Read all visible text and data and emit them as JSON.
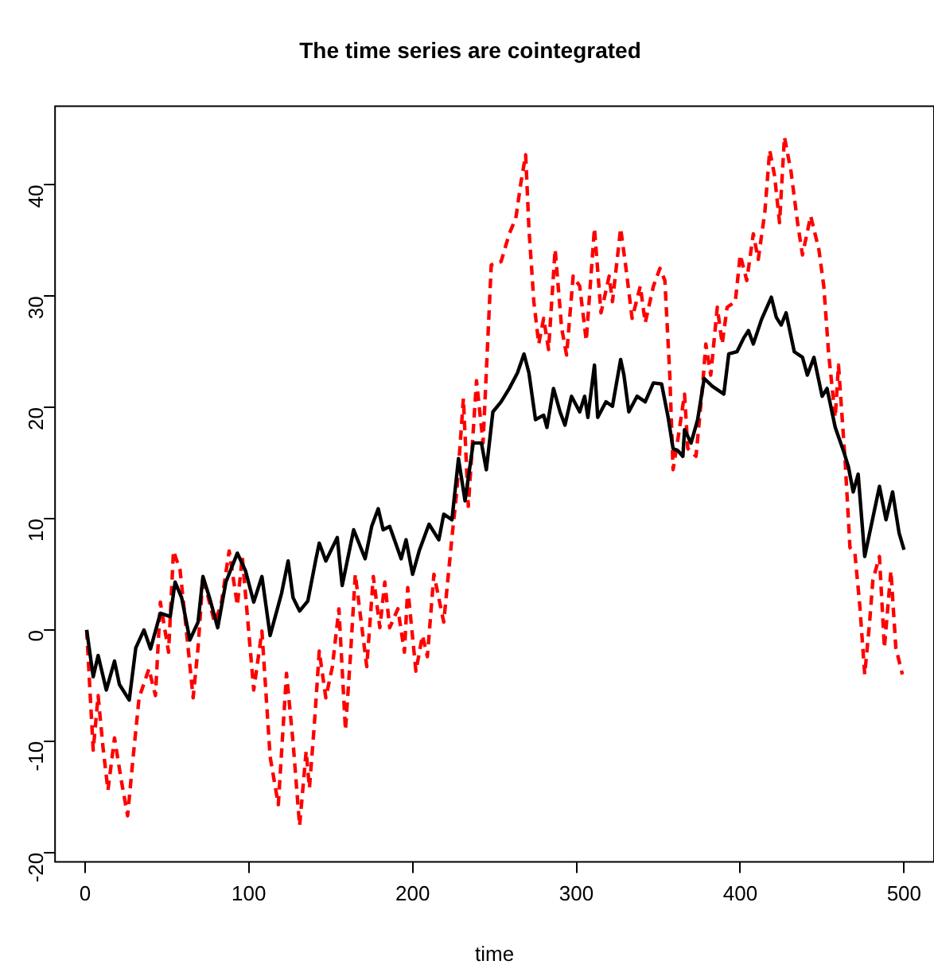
{
  "chart_data": {
    "type": "line",
    "title": "The time series are cointegrated",
    "xlabel": "time",
    "xlim": [
      -18.3,
      518.3
    ],
    "ylim": [
      -20.85,
      47.06
    ],
    "xticks": [
      0,
      100,
      200,
      300,
      400,
      500
    ],
    "yticks": [
      -20,
      -10,
      0,
      10,
      20,
      30,
      40
    ],
    "grid": false,
    "legend": false,
    "marker": "none",
    "series": [
      {
        "color": "#000000",
        "line_style": "solid",
        "x": [
          1,
          5,
          8,
          13,
          18,
          21,
          27,
          31,
          36,
          40,
          46,
          52,
          55,
          59,
          64,
          69,
          72,
          76,
          81,
          86,
          93,
          98,
          103,
          108,
          113,
          120,
          124,
          127,
          131,
          136,
          141,
          143,
          147,
          154,
          157,
          164,
          171,
          175,
          179,
          182,
          186,
          193,
          196,
          200,
          204,
          210,
          216,
          219,
          224,
          228,
          232,
          237,
          242,
          245,
          249,
          254,
          259,
          264,
          268,
          271,
          275,
          280,
          282,
          286,
          290,
          293,
          297,
          302,
          305,
          307,
          311,
          313,
          318,
          322,
          327,
          329,
          332,
          337,
          342,
          347,
          352,
          356,
          359,
          362,
          365,
          366,
          370,
          374,
          378,
          383,
          390,
          393,
          398,
          402,
          405,
          408,
          413,
          419,
          422,
          425,
          428,
          433,
          438,
          441,
          445,
          450,
          453,
          458,
          463,
          466,
          469,
          472,
          476,
          479,
          485,
          489,
          493,
          497,
          500
        ],
        "values": [
          0,
          -4.2,
          -2.3,
          -5.4,
          -2.8,
          -4.9,
          -6.3,
          -1.6,
          0,
          -1.7,
          1.5,
          1.2,
          4.3,
          2.9,
          -0.9,
          0.7,
          4.8,
          2.9,
          0.2,
          4.3,
          6.9,
          5.3,
          2.5,
          4.8,
          -0.5,
          3.3,
          6.2,
          2.9,
          1.7,
          2.6,
          6.4,
          7.8,
          6.2,
          8.3,
          4.0,
          9.0,
          6.4,
          9.3,
          10.9,
          9.0,
          9.3,
          6.4,
          8.1,
          5.0,
          7.1,
          9.5,
          8.1,
          10.4,
          9.9,
          15.4,
          11.6,
          16.8,
          16.8,
          14.4,
          19.6,
          20.5,
          21.7,
          23.1,
          24.8,
          23.1,
          18.9,
          19.3,
          18.2,
          21.7,
          19.6,
          18.4,
          21.0,
          19.6,
          21.0,
          19.1,
          23.8,
          19.1,
          20.5,
          20.1,
          24.3,
          22.9,
          19.6,
          21.0,
          20.5,
          22.2,
          22.1,
          19.1,
          16.3,
          16.1,
          15.6,
          18.0,
          16.8,
          18.9,
          22.6,
          21.9,
          21.2,
          24.8,
          25.0,
          26.2,
          26.9,
          25.7,
          27.9,
          29.9,
          28.1,
          27.4,
          28.5,
          25.0,
          24.5,
          22.9,
          24.5,
          21.0,
          21.7,
          18.2,
          16.1,
          14.7,
          12.4,
          14.0,
          6.6,
          8.7,
          12.9,
          9.9,
          12.4,
          8.7,
          7.2
        ]
      },
      {
        "color": "#ff0000",
        "line_style": "dashed",
        "x": [
          1,
          5,
          8,
          11,
          14,
          18,
          22,
          26,
          29,
          33,
          39,
          43,
          46,
          51,
          54,
          58,
          61,
          66,
          69,
          72,
          79,
          83,
          88,
          93,
          96,
          103,
          108,
          113,
          118,
          123,
          127,
          131,
          135,
          137,
          140,
          143,
          147,
          151,
          155,
          159,
          162,
          165,
          172,
          176,
          180,
          183,
          186,
          191,
          195,
          197,
          202,
          206,
          209,
          213,
          219,
          224,
          227,
          231,
          234,
          239,
          243,
          248,
          254,
          259,
          263,
          266,
          269,
          271,
          274,
          277,
          280,
          283,
          287,
          291,
          294,
          298,
          302,
          306,
          311,
          315,
          320,
          322,
          327,
          330,
          334,
          339,
          342,
          347,
          351,
          354,
          357,
          359,
          362,
          366,
          368,
          373,
          377,
          379,
          382,
          386,
          389,
          392,
          397,
          400,
          404,
          408,
          411,
          415,
          418,
          421,
          424,
          427,
          431,
          435,
          438,
          443,
          448,
          451,
          454,
          458,
          460,
          464,
          467,
          470,
          473,
          476,
          479,
          481,
          485,
          488,
          492,
          495,
          499
        ],
        "values": [
          0,
          -10.8,
          -5.9,
          -10.6,
          -14.4,
          -9.7,
          -13.4,
          -16.7,
          -12.0,
          -6.1,
          -3.5,
          -5.9,
          2.5,
          -2.0,
          7.1,
          5.4,
          1.2,
          -6.1,
          -1.6,
          4.8,
          0.7,
          2.2,
          7.1,
          2.2,
          6.6,
          -5.4,
          -0.1,
          -11.4,
          -15.7,
          -3.9,
          -10.1,
          -17.6,
          -10.9,
          -14.2,
          -8.5,
          -1.9,
          -6.1,
          -3.3,
          1.9,
          -9.0,
          -2.4,
          5.0,
          -3.3,
          4.8,
          0.2,
          4.3,
          0.2,
          1.9,
          -2.0,
          3.8,
          -3.7,
          -0.5,
          -2.4,
          5.0,
          0.7,
          8.3,
          12.5,
          20.8,
          11.1,
          22.4,
          16.8,
          32.8,
          33.1,
          35.6,
          37.0,
          40.1,
          42.7,
          36.1,
          29.5,
          25.7,
          28.0,
          25.2,
          34.2,
          27.1,
          24.7,
          31.8,
          30.9,
          26.0,
          36.1,
          28.5,
          31.8,
          29.5,
          36.1,
          32.8,
          28.0,
          30.9,
          27.6,
          30.9,
          32.5,
          31.4,
          22.9,
          14.4,
          17.2,
          21.2,
          16.3,
          15.6,
          21.9,
          25.7,
          22.9,
          29.0,
          25.7,
          29.0,
          29.5,
          33.7,
          31.4,
          35.6,
          33.3,
          37.5,
          43.1,
          40.8,
          36.6,
          44.3,
          41.2,
          36.6,
          33.7,
          37.2,
          34.2,
          30.9,
          24.8,
          19.1,
          23.8,
          15.3,
          7.4,
          6.9,
          2.2,
          -4.0,
          0.7,
          4.5,
          6.6,
          -1.6,
          5.3,
          -1.6,
          -4.0
        ]
      }
    ]
  }
}
